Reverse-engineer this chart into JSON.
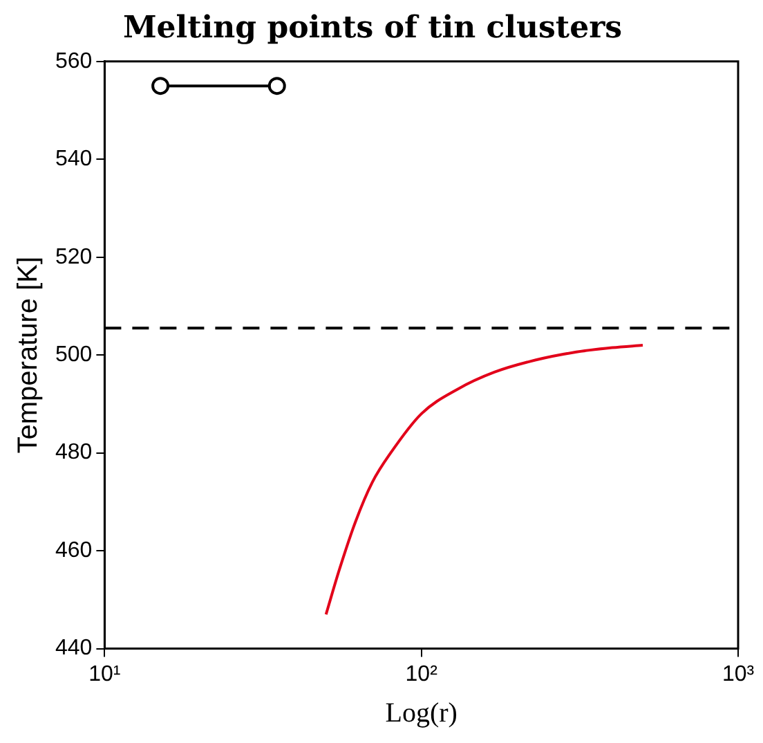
{
  "chart_data": {
    "type": "line",
    "title": "Melting points of tin clusters",
    "xlabel": "Log(r)",
    "ylabel": "Temperature [K]",
    "log": "x",
    "xlim": [
      10,
      1000
    ],
    "xticks": [
      {
        "value": 10,
        "label": "10¹"
      },
      {
        "value": 100,
        "label": "10²"
      },
      {
        "value": 1000,
        "label": "10³"
      }
    ],
    "ylim": [
      440,
      560
    ],
    "yticks": [
      440,
      460,
      480,
      500,
      520,
      540,
      560
    ],
    "grid": false,
    "legend": false,
    "series": [
      {
        "color": "#000000",
        "marker": "circle",
        "x": [
          15,
          35
        ],
        "values": [
          555,
          555
        ]
      },
      {
        "color": "#e2001a",
        "marker": "none",
        "x": [
          50,
          55,
          62,
          70,
          80,
          100,
          130,
          170,
          230,
          300,
          400,
          500
        ],
        "values": [
          447,
          456,
          466,
          474,
          480,
          488,
          493,
          496.5,
          499,
          500.5,
          501.5,
          502
        ]
      }
    ],
    "ref_lines": [
      {
        "axis": "y",
        "value": 505.5,
        "color": "#000000",
        "line_style": "dashed"
      }
    ]
  }
}
